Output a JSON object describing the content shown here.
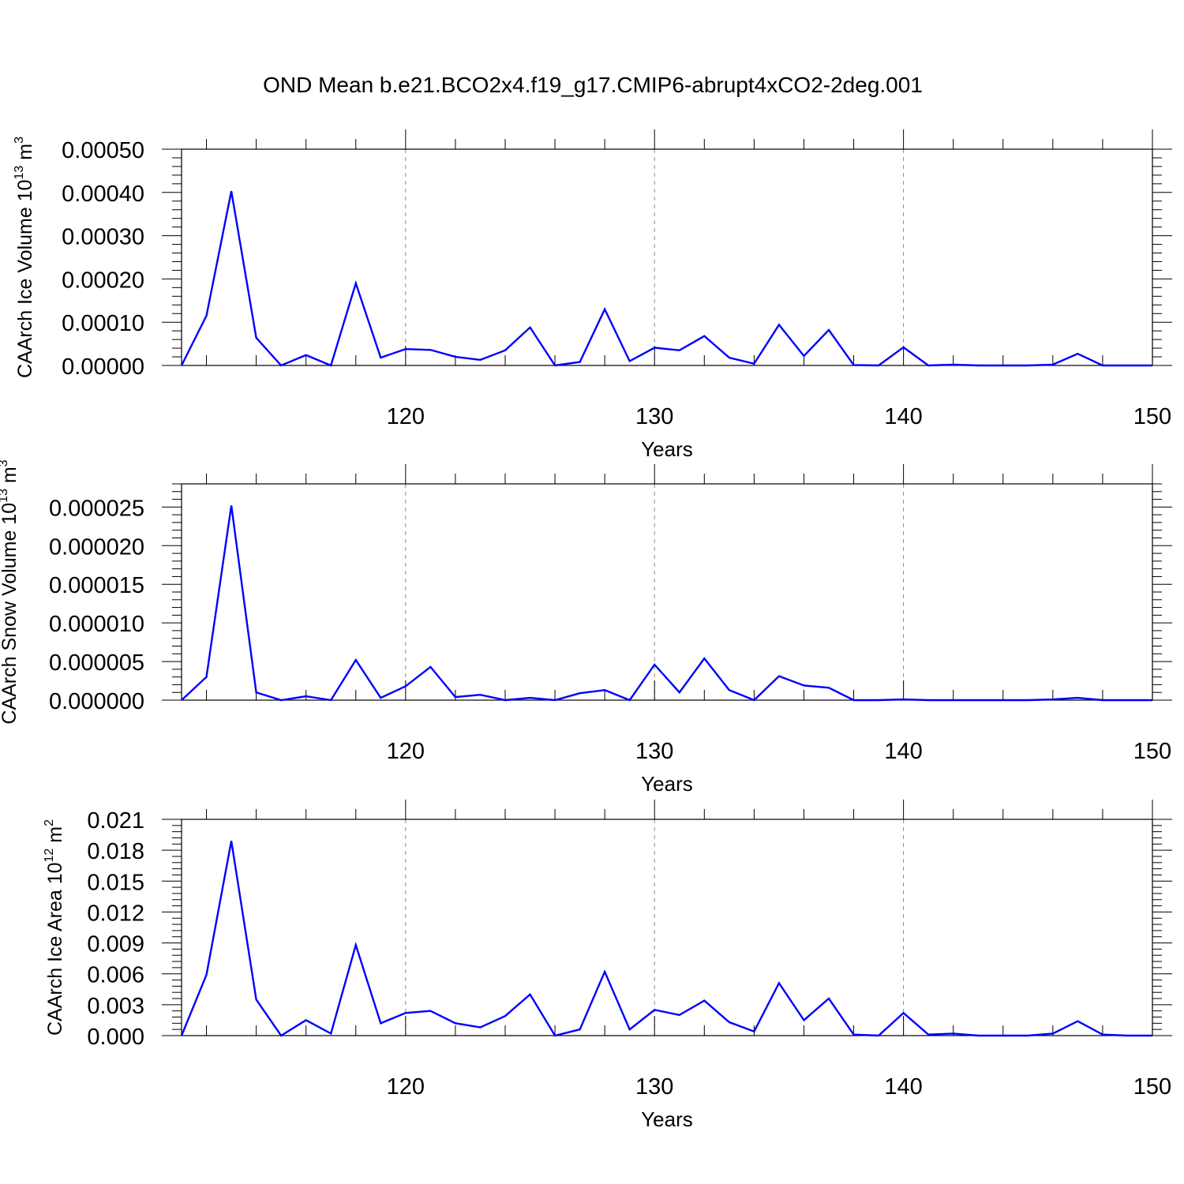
{
  "figure_title": "OND Mean b.e21.BCO2x4.f19_g17.CMIP6-abrupt4xCO2-2deg.001",
  "chart_data": [
    {
      "type": "line",
      "ylabel_main": "CAArch Ice Volume 10",
      "ylabel_exp": "13",
      "ylabel_unit": "m",
      "ylabel_unit_exp": "3",
      "xlabel": "Years",
      "xlim": [
        111,
        150
      ],
      "ylim": [
        0,
        0.0005
      ],
      "xticks": [
        120,
        130,
        140,
        150
      ],
      "yticks": [
        "0.00000",
        "0.00010",
        "0.00020",
        "0.00030",
        "0.00040",
        "0.00050"
      ],
      "ytick_values": [
        0,
        0.0001,
        0.0002,
        0.0003,
        0.0004,
        0.0005
      ],
      "grid": "vertical dashed at major x ticks",
      "line_color": "#0000ff",
      "x": [
        111,
        112,
        113,
        114,
        115,
        116,
        117,
        118,
        119,
        120,
        121,
        122,
        123,
        124,
        125,
        126,
        127,
        128,
        129,
        130,
        131,
        132,
        133,
        134,
        135,
        136,
        137,
        138,
        139,
        140,
        141,
        142,
        143,
        144,
        145,
        146,
        147,
        148,
        149,
        150
      ],
      "values": [
        0.0,
        0.000115,
        0.000403,
        6.4e-05,
        0.0,
        2.4e-05,
        0.0,
        0.00019,
        1.8e-05,
        3.8e-05,
        3.6e-05,
        2e-05,
        1.3e-05,
        3.5e-05,
        8.8e-05,
        0.0,
        8e-06,
        0.00013,
        1e-05,
        4.1e-05,
        3.5e-05,
        6.8e-05,
        1.8e-05,
        4e-06,
        9.4e-05,
        2.2e-05,
        8.2e-05,
        1e-06,
        0.0,
        4.2e-05,
        0.0,
        2e-06,
        0.0,
        0.0,
        0.0,
        2e-06,
        2.7e-05,
        0.0,
        0.0,
        0.0
      ]
    },
    {
      "type": "line",
      "ylabel_main": "CAArch Snow Volume 10",
      "ylabel_exp": "13",
      "ylabel_unit": "m",
      "ylabel_unit_exp": "3",
      "xlabel": "Years",
      "xlim": [
        111,
        150
      ],
      "ylim": [
        0,
        2.8e-05
      ],
      "xticks": [
        120,
        130,
        140,
        150
      ],
      "yticks": [
        "0.000000",
        "0.000005",
        "0.000010",
        "0.000015",
        "0.000020",
        "0.000025"
      ],
      "ytick_values": [
        0,
        5e-06,
        1e-05,
        1.5e-05,
        2e-05,
        2.5e-05
      ],
      "grid": "vertical dashed at major x ticks",
      "line_color": "#0000ff",
      "x": [
        111,
        112,
        113,
        114,
        115,
        116,
        117,
        118,
        119,
        120,
        121,
        122,
        123,
        124,
        125,
        126,
        127,
        128,
        129,
        130,
        131,
        132,
        133,
        134,
        135,
        136,
        137,
        138,
        139,
        140,
        141,
        142,
        143,
        144,
        145,
        146,
        147,
        148,
        149,
        150
      ],
      "values": [
        0.0,
        3e-06,
        2.52e-05,
        1e-06,
        0.0,
        5e-07,
        0.0,
        5.2e-06,
        3e-07,
        1.8e-06,
        4.3e-06,
        4e-07,
        7e-07,
        0.0,
        3e-07,
        0.0,
        9e-07,
        1.3e-06,
        0.0,
        4.6e-06,
        1e-06,
        5.4e-06,
        1.3e-06,
        0.0,
        3.1e-06,
        1.9e-06,
        1.6e-06,
        0.0,
        0.0,
        1e-07,
        0.0,
        0.0,
        0.0,
        0.0,
        0.0,
        1e-07,
        3e-07,
        0.0,
        0.0,
        0.0
      ]
    },
    {
      "type": "line",
      "ylabel_main": "CAArch Ice Area 10",
      "ylabel_exp": "12",
      "ylabel_unit": "m",
      "ylabel_unit_exp": "2",
      "xlabel": "Years",
      "xlim": [
        111,
        150
      ],
      "ylim": [
        0,
        0.021
      ],
      "xticks": [
        120,
        130,
        140,
        150
      ],
      "yticks": [
        "0.000",
        "0.003",
        "0.006",
        "0.009",
        "0.012",
        "0.015",
        "0.018",
        "0.021"
      ],
      "ytick_values": [
        0,
        0.003,
        0.006,
        0.009,
        0.012,
        0.015,
        0.018,
        0.021
      ],
      "grid": "vertical dashed at major x ticks",
      "line_color": "#0000ff",
      "x": [
        111,
        112,
        113,
        114,
        115,
        116,
        117,
        118,
        119,
        120,
        121,
        122,
        123,
        124,
        125,
        126,
        127,
        128,
        129,
        130,
        131,
        132,
        133,
        134,
        135,
        136,
        137,
        138,
        139,
        140,
        141,
        142,
        143,
        144,
        145,
        146,
        147,
        148,
        149,
        150
      ],
      "values": [
        0.0,
        0.0059,
        0.0189,
        0.0035,
        0.0,
        0.0015,
        0.0002,
        0.0088,
        0.0012,
        0.0022,
        0.0024,
        0.0012,
        0.0008,
        0.0019,
        0.004,
        0.0,
        0.0006,
        0.0062,
        0.0006,
        0.0025,
        0.002,
        0.0034,
        0.0013,
        0.0004,
        0.0051,
        0.0015,
        0.0036,
        0.0001,
        0.0,
        0.0022,
        0.0001,
        0.0002,
        0.0,
        0.0,
        0.0,
        0.0002,
        0.0014,
        0.0001,
        0.0,
        0.0
      ]
    }
  ]
}
